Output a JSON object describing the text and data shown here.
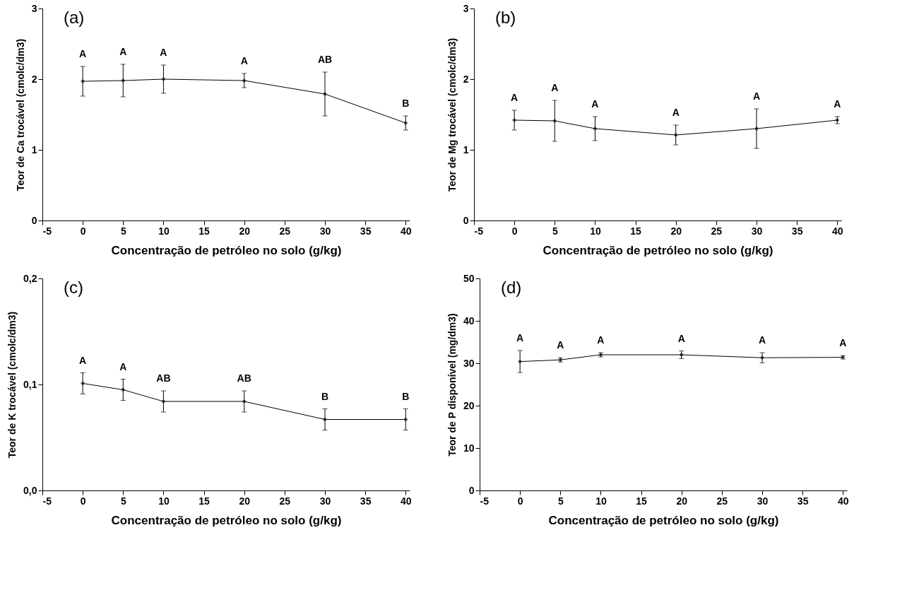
{
  "chart_data": [
    {
      "type": "line",
      "xlabel": "Concentração de petróleo no solo (g/kg)",
      "ylabel": "Teor de Ca trocável (cmolc/dm3)",
      "x": [
        0,
        5,
        10,
        20,
        30,
        40
      ],
      "xlim": [
        -5,
        40.5
      ],
      "xticks": [
        -5,
        0,
        5,
        10,
        15,
        20,
        25,
        30,
        35,
        40
      ],
      "ylim": [
        0,
        3
      ],
      "yticks": [
        0,
        1,
        2,
        3
      ],
      "grid": false,
      "marker": "diamond",
      "line_style": "solid",
      "series": [
        {
          "color": "#000000",
          "values": [
            1.97,
            1.98,
            2.0,
            1.98,
            1.79,
            1.38
          ],
          "errors": [
            0.21,
            0.23,
            0.2,
            0.1,
            0.31,
            0.1
          ]
        }
      ],
      "annotations": [
        "(a)",
        {
          "text": "A",
          "x": 0,
          "y": 2.18
        },
        {
          "text": "A",
          "x": 5,
          "y": 2.21
        },
        {
          "text": "A",
          "x": 10,
          "y": 2.2
        },
        {
          "text": "A",
          "x": 20,
          "y": 2.08
        },
        {
          "text": "AB",
          "x": 30,
          "y": 2.1
        },
        {
          "text": "B",
          "x": 40,
          "y": 1.48
        }
      ]
    },
    {
      "type": "line",
      "xlabel": "Concentração de petróleo no solo (g/kg)",
      "ylabel": "Teor de Mg trocável (cmolc/dm3)",
      "x": [
        0,
        5,
        10,
        20,
        30,
        40
      ],
      "xlim": [
        -5,
        40.5
      ],
      "xticks": [
        -5,
        0,
        5,
        10,
        15,
        20,
        25,
        30,
        35,
        40
      ],
      "ylim": [
        0,
        3
      ],
      "yticks": [
        0,
        1,
        2,
        3
      ],
      "grid": false,
      "marker": "diamond",
      "line_style": "solid",
      "series": [
        {
          "color": "#000000",
          "values": [
            1.42,
            1.41,
            1.3,
            1.21,
            1.3,
            1.42
          ],
          "errors": [
            0.14,
            0.29,
            0.17,
            0.14,
            0.28,
            0.05
          ]
        }
      ],
      "annotations": [
        "(b)",
        {
          "text": "A",
          "x": 0,
          "y": 1.56
        },
        {
          "text": "A",
          "x": 5,
          "y": 1.7
        },
        {
          "text": "A",
          "x": 10,
          "y": 1.47
        },
        {
          "text": "A",
          "x": 20,
          "y": 1.35
        },
        {
          "text": "A",
          "x": 30,
          "y": 1.58
        },
        {
          "text": "A",
          "x": 40,
          "y": 1.47
        }
      ]
    },
    {
      "type": "line",
      "xlabel": "Concentração de petróleo no solo (g/kg)",
      "ylabel": "Teor de K trocável (cmolc/dm3)",
      "x": [
        0,
        5,
        10,
        20,
        30,
        40
      ],
      "xlim": [
        -5,
        40.5
      ],
      "xticks": [
        -5,
        0,
        5,
        10,
        15,
        20,
        25,
        30,
        35,
        40
      ],
      "ylim": [
        0,
        0.2
      ],
      "yticks": [
        {
          "value": 0,
          "label": "0,0"
        },
        {
          "value": 0.1,
          "label": "0,1"
        },
        {
          "value": 0.2,
          "label": "0,2"
        }
      ],
      "grid": false,
      "marker": "diamond",
      "line_style": "solid",
      "series": [
        {
          "color": "#000000",
          "values": [
            0.101,
            0.095,
            0.084,
            0.084,
            0.067,
            0.067
          ],
          "errors": [
            0.01,
            0.01,
            0.01,
            0.01,
            0.01,
            0.01
          ]
        }
      ],
      "annotations": [
        "(c)",
        {
          "text": "A",
          "x": 0,
          "y": 0.111
        },
        {
          "text": "A",
          "x": 5,
          "y": 0.105
        },
        {
          "text": "AB",
          "x": 10,
          "y": 0.094
        },
        {
          "text": "AB",
          "x": 20,
          "y": 0.094
        },
        {
          "text": "B",
          "x": 30,
          "y": 0.077
        },
        {
          "text": "B",
          "x": 40,
          "y": 0.077
        }
      ]
    },
    {
      "type": "line",
      "xlabel": "Concentração de petróleo no solo (g/kg)",
      "ylabel": "Teor de P disponível (mg/dm3)",
      "x": [
        0,
        5,
        10,
        20,
        30,
        40
      ],
      "xlim": [
        -5,
        40.5
      ],
      "xticks": [
        -5,
        0,
        5,
        10,
        15,
        20,
        25,
        30,
        35,
        40
      ],
      "ylim": [
        0,
        50
      ],
      "yticks": [
        0,
        10,
        20,
        30,
        40,
        50
      ],
      "grid": false,
      "marker": "diamond",
      "line_style": "solid",
      "series": [
        {
          "color": "#000000",
          "values": [
            30.4,
            30.8,
            32.0,
            32.0,
            31.3,
            31.4
          ],
          "errors": [
            2.6,
            0.5,
            0.5,
            0.9,
            1.2,
            0.4
          ]
        }
      ],
      "annotations": [
        "(d)",
        {
          "text": "A",
          "x": 0,
          "y": 33.0
        },
        {
          "text": "A",
          "x": 5,
          "y": 31.3
        },
        {
          "text": "A",
          "x": 10,
          "y": 32.5
        },
        {
          "text": "A",
          "x": 20,
          "y": 32.9
        },
        {
          "text": "A",
          "x": 30,
          "y": 32.5
        },
        {
          "text": "A",
          "x": 40,
          "y": 31.8
        }
      ]
    }
  ]
}
